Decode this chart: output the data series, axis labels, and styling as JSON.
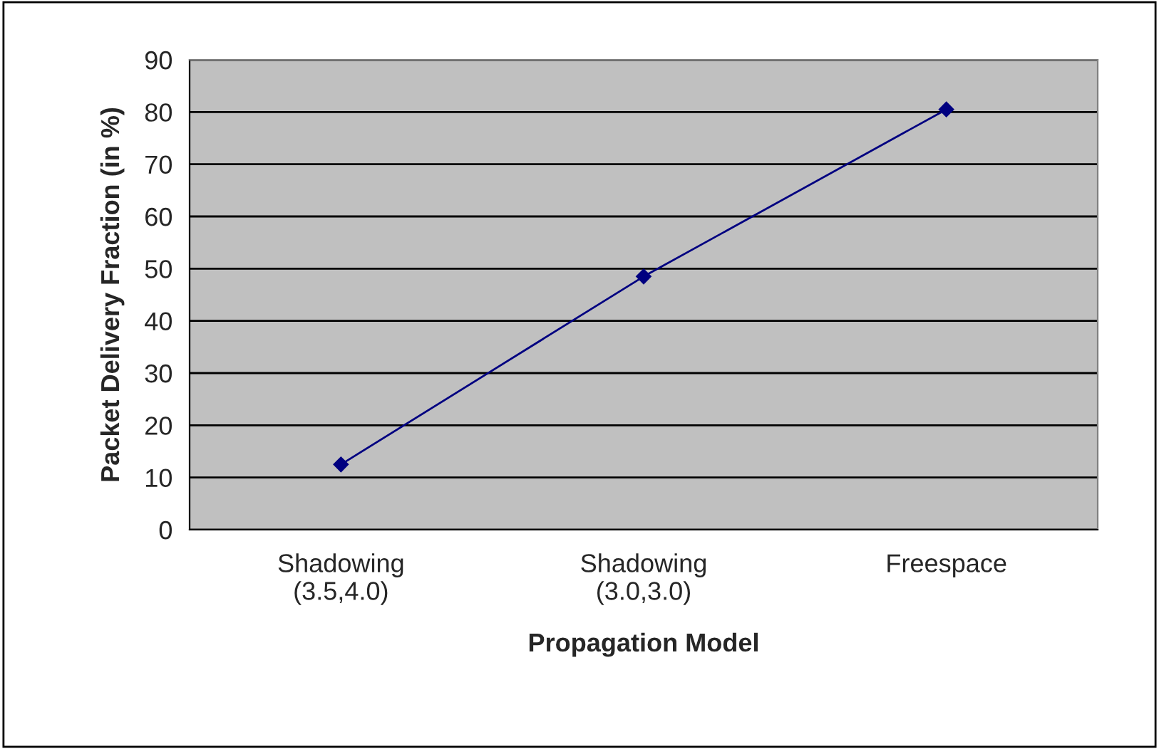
{
  "chart_data": {
    "type": "line",
    "xlabel": "Propagation Model",
    "ylabel": "Packet Delivery Fraction (in %)",
    "categories": [
      "Shadowing\n(3.5,4.0)",
      "Shadowing\n(3.0,3.0)",
      "Freespace"
    ],
    "series": [
      {
        "color": "#000080",
        "values": [
          12.5,
          48.5,
          80.5
        ]
      }
    ],
    "ylim": [
      0,
      90
    ],
    "yticks": [
      0,
      10,
      20,
      30,
      40,
      50,
      60,
      70,
      80,
      90
    ],
    "grid": "y",
    "marker": "diamond",
    "line_style": "solid",
    "legend": false
  }
}
